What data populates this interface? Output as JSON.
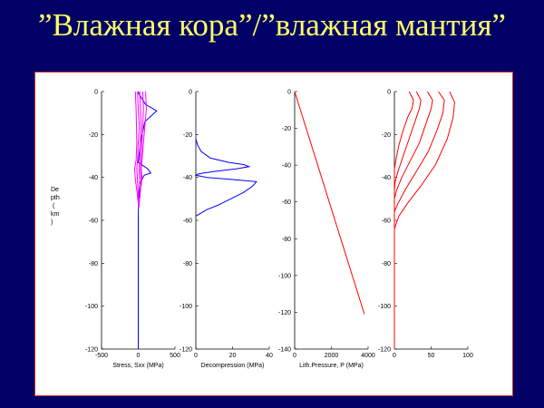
{
  "slide": {
    "title": "”Влажная кора”/”влажная мантия”"
  },
  "chart_data": [
    {
      "type": "line",
      "xlabel": "Stress, Sxx (MPa)",
      "ylabel": "Depth (km)",
      "xlim": [
        -500,
        500
      ],
      "ylim": [
        -120,
        0
      ],
      "xticks": [
        -500,
        0,
        500
      ],
      "yticks": [
        0,
        -20,
        -40,
        -60,
        -80,
        -100,
        -120
      ],
      "series": [
        {
          "color": "#0000ff",
          "points": [
            [
              0,
              0
            ],
            [
              8,
              -1
            ],
            [
              100,
              -6
            ],
            [
              250,
              -9
            ],
            [
              90,
              -14
            ],
            [
              40,
              -22
            ],
            [
              10,
              -30
            ],
            [
              0,
              -33
            ],
            [
              130,
              -36
            ],
            [
              170,
              -38
            ],
            [
              80,
              -39
            ],
            [
              20,
              -43
            ],
            [
              5,
              -50
            ],
            [
              0,
              -58
            ],
            [
              0,
              -120
            ]
          ]
        },
        {
          "color": "#ff00ff",
          "points": [
            [
              -40,
              0
            ],
            [
              -30,
              -8
            ],
            [
              -25,
              -16
            ],
            [
              -20,
              -24
            ],
            [
              -30,
              -32
            ],
            [
              -50,
              -36
            ],
            [
              -40,
              -41
            ],
            [
              -20,
              -46
            ],
            [
              0,
              -52
            ]
          ]
        },
        {
          "color": "#ff00ff",
          "points": [
            [
              -10,
              0
            ],
            [
              0,
              -8
            ],
            [
              15,
              -16
            ],
            [
              0,
              -24
            ],
            [
              -10,
              -32
            ],
            [
              -20,
              -36
            ],
            [
              -10,
              -42
            ],
            [
              0,
              -48
            ],
            [
              5,
              -54
            ]
          ]
        },
        {
          "color": "#ff00ff",
          "points": [
            [
              20,
              0
            ],
            [
              30,
              -8
            ],
            [
              40,
              -16
            ],
            [
              30,
              -24
            ],
            [
              20,
              -32
            ],
            [
              10,
              -36
            ],
            [
              20,
              -42
            ],
            [
              20,
              -48
            ],
            [
              10,
              -54
            ]
          ]
        },
        {
          "color": "#ff00ff",
          "points": [
            [
              60,
              0
            ],
            [
              70,
              -8
            ],
            [
              60,
              -16
            ],
            [
              50,
              -24
            ],
            [
              40,
              -32
            ],
            [
              30,
              -36
            ],
            [
              40,
              -42
            ],
            [
              30,
              -46
            ],
            [
              20,
              -50
            ]
          ]
        },
        {
          "color": "#ff00ff",
          "points": [
            [
              100,
              0
            ],
            [
              110,
              -8
            ],
            [
              90,
              -16
            ],
            [
              70,
              -24
            ],
            [
              50,
              -32
            ],
            [
              40,
              -36
            ],
            [
              50,
              -40
            ],
            [
              40,
              -44
            ]
          ]
        }
      ]
    },
    {
      "type": "line",
      "xlabel": "Decompression (MPa)",
      "ylim": [
        -120,
        0
      ],
      "xlim": [
        0,
        40
      ],
      "xticks": [
        0,
        20,
        40
      ],
      "yticks": [
        0,
        -20,
        -40,
        -60,
        -80,
        -100,
        -120
      ],
      "series": [
        {
          "color": "#0000ff",
          "points": [
            [
              0,
              -22
            ],
            [
              1,
              -25
            ],
            [
              3,
              -28
            ],
            [
              8,
              -31
            ],
            [
              18,
              -33
            ],
            [
              26,
              -34
            ],
            [
              29,
              -35
            ],
            [
              22,
              -36
            ],
            [
              12,
              -37
            ],
            [
              4,
              -38
            ],
            [
              1,
              -38.5
            ],
            [
              0,
              -39
            ],
            [
              6,
              -40
            ],
            [
              20,
              -41
            ],
            [
              33,
              -42
            ],
            [
              31,
              -44
            ],
            [
              26,
              -47
            ],
            [
              19,
              -50
            ],
            [
              12,
              -53
            ],
            [
              6,
              -55
            ],
            [
              2,
              -57
            ],
            [
              0,
              -58
            ]
          ]
        }
      ]
    },
    {
      "type": "line",
      "xlabel": "Lith.Pressure, P (MPa)",
      "xlim": [
        0,
        4000
      ],
      "ylim": [
        -140,
        0
      ],
      "xticks": [
        0,
        2000,
        4000
      ],
      "yticks": [
        0,
        -20,
        -40,
        -60,
        -80,
        -100,
        -120,
        -140
      ],
      "series": [
        {
          "color": "#ff0000",
          "points": [
            [
              0,
              0
            ],
            [
              3800,
              -121
            ]
          ]
        }
      ]
    },
    {
      "type": "line",
      "xlabel": "",
      "xlim": [
        0,
        100
      ],
      "ylim": [
        -120,
        0
      ],
      "xticks": [
        0,
        50,
        100
      ],
      "yticks": [
        0,
        -20,
        -40,
        -60,
        -80,
        -100,
        -120
      ],
      "series": [
        {
          "color": "#ff0000",
          "points": [
            [
              20,
              0
            ],
            [
              26,
              -4
            ],
            [
              24,
              -8
            ],
            [
              18,
              -12
            ],
            [
              12,
              -18
            ],
            [
              6,
              -25
            ],
            [
              2,
              -32
            ],
            [
              0,
              -36
            ],
            [
              0,
              -120
            ]
          ]
        },
        {
          "color": "#ff0000",
          "points": [
            [
              30,
              0
            ],
            [
              36,
              -4
            ],
            [
              34,
              -8
            ],
            [
              28,
              -14
            ],
            [
              20,
              -22
            ],
            [
              12,
              -30
            ],
            [
              5,
              -37
            ],
            [
              1,
              -42
            ],
            [
              0,
              -46
            ]
          ]
        },
        {
          "color": "#ff0000",
          "points": [
            [
              45,
              0
            ],
            [
              52,
              -4
            ],
            [
              50,
              -8
            ],
            [
              44,
              -14
            ],
            [
              34,
              -24
            ],
            [
              22,
              -32
            ],
            [
              10,
              -40
            ],
            [
              3,
              -46
            ],
            [
              0,
              -50
            ]
          ]
        },
        {
          "color": "#ff0000",
          "points": [
            [
              60,
              0
            ],
            [
              68,
              -4
            ],
            [
              66,
              -10
            ],
            [
              58,
              -18
            ],
            [
              46,
              -28
            ],
            [
              32,
              -36
            ],
            [
              16,
              -45
            ],
            [
              5,
              -52
            ],
            [
              0,
              -56
            ]
          ]
        },
        {
          "color": "#ff0000",
          "points": [
            [
              75,
              0
            ],
            [
              82,
              -5
            ],
            [
              80,
              -12
            ],
            [
              72,
              -22
            ],
            [
              56,
              -34
            ],
            [
              36,
              -44
            ],
            [
              18,
              -52
            ],
            [
              6,
              -58
            ],
            [
              2,
              -62
            ],
            [
              0,
              -64
            ]
          ]
        }
      ]
    }
  ]
}
